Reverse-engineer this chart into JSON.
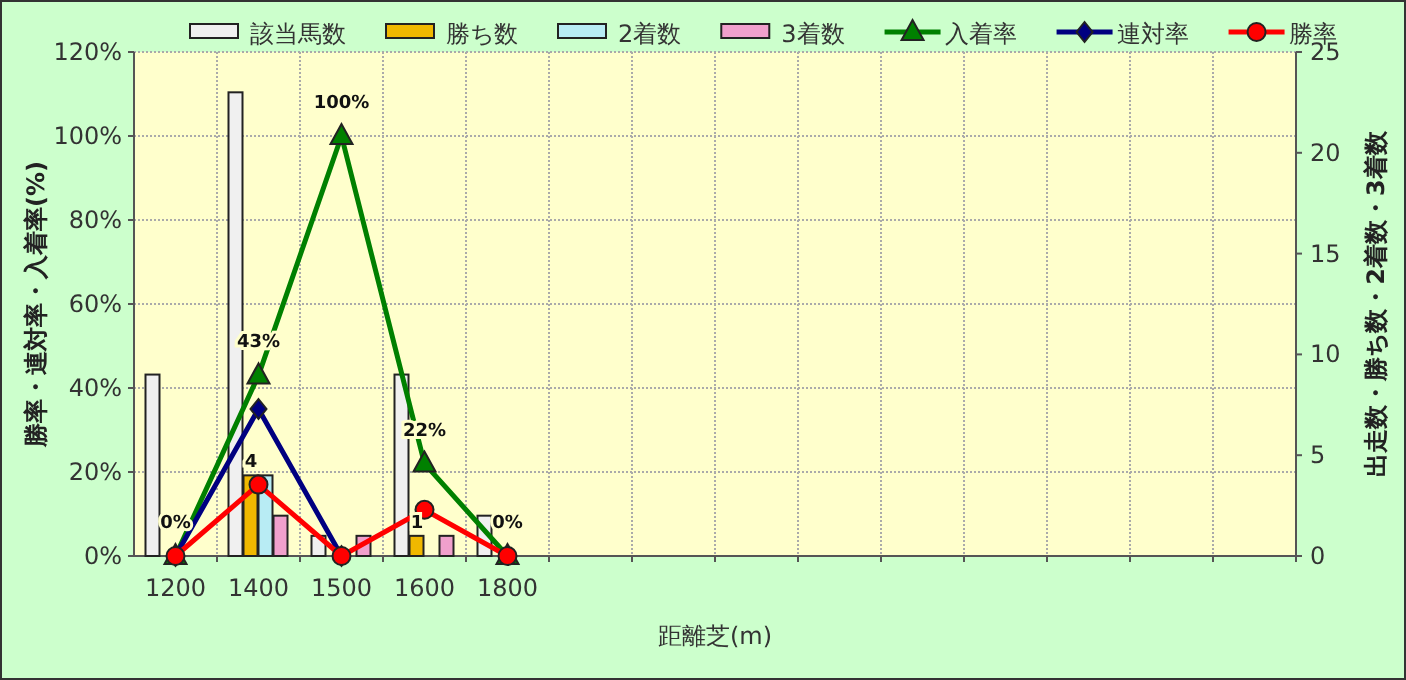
{
  "chart_data": {
    "type": "bar",
    "xlabel": "距離芝(m)",
    "ylabel": "勝率・連対率・入着率(%)",
    "y2label": "出走数・勝ち数・2着数・3着数",
    "categories": [
      "1200",
      "1400",
      "1500",
      "1600",
      "1800",
      null,
      null,
      null,
      null,
      null,
      null,
      null,
      null,
      null
    ],
    "series": [
      {
        "name": "該当馬数",
        "axis": "y2",
        "color": "#f0f0f0",
        "values": [
          9,
          23,
          1,
          9,
          2,
          null,
          null,
          null,
          null,
          null,
          null,
          null,
          null,
          null
        ]
      },
      {
        "name": "勝ち数",
        "axis": "y2",
        "color": "#f0b800",
        "values": [
          0,
          4,
          0,
          1,
          0,
          null,
          null,
          null,
          null,
          null,
          null,
          null,
          null,
          null
        ],
        "value_labels": [
          null,
          "4",
          null,
          "1",
          null,
          null,
          null,
          null,
          null,
          null,
          null,
          null,
          null,
          null
        ]
      },
      {
        "name": "2着数",
        "axis": "y2",
        "color": "#b8ecf4",
        "values": [
          0,
          4,
          0,
          0,
          0,
          null,
          null,
          null,
          null,
          null,
          null,
          null,
          null,
          null
        ]
      },
      {
        "name": "3着数",
        "axis": "y2",
        "color": "#f0a0cc",
        "values": [
          0,
          2,
          1,
          1,
          0,
          null,
          null,
          null,
          null,
          null,
          null,
          null,
          null,
          null
        ]
      },
      {
        "name": "入着率",
        "type": "line",
        "color": "#008000",
        "marker": "triangle",
        "values": [
          0,
          43,
          100,
          22,
          0,
          null,
          null,
          null,
          null,
          null,
          null,
          null,
          null,
          null
        ],
        "value_labels": [
          "0%",
          "43%",
          "100%",
          "22%",
          "0%",
          null,
          null,
          null,
          null,
          null,
          null,
          null,
          null,
          null
        ]
      },
      {
        "name": "連対率",
        "type": "line",
        "color": "#000080",
        "marker": "diamond",
        "values": [
          0,
          35,
          0,
          null,
          null,
          null,
          null,
          null,
          null,
          null,
          null,
          null,
          null,
          null
        ]
      },
      {
        "name": "勝率",
        "type": "line",
        "color": "#ff0000",
        "marker": "circle",
        "values": [
          0,
          17,
          0,
          11,
          0,
          null,
          null,
          null,
          null,
          null,
          null,
          null,
          null,
          null
        ]
      }
    ],
    "ylim": [
      0,
      120
    ],
    "yticks": [
      {
        "value": 0,
        "label": "0%"
      },
      {
        "value": 20,
        "label": "20%"
      },
      {
        "value": 40,
        "label": "40%"
      },
      {
        "value": 60,
        "label": "60%"
      },
      {
        "value": 80,
        "label": "80%"
      },
      {
        "value": 100,
        "label": "100%"
      },
      {
        "value": 120,
        "label": "120%"
      }
    ],
    "y2lim": [
      0,
      25
    ],
    "y2ticks": [
      0,
      5,
      10,
      15,
      20,
      25
    ],
    "grid": true,
    "legend": "top"
  }
}
